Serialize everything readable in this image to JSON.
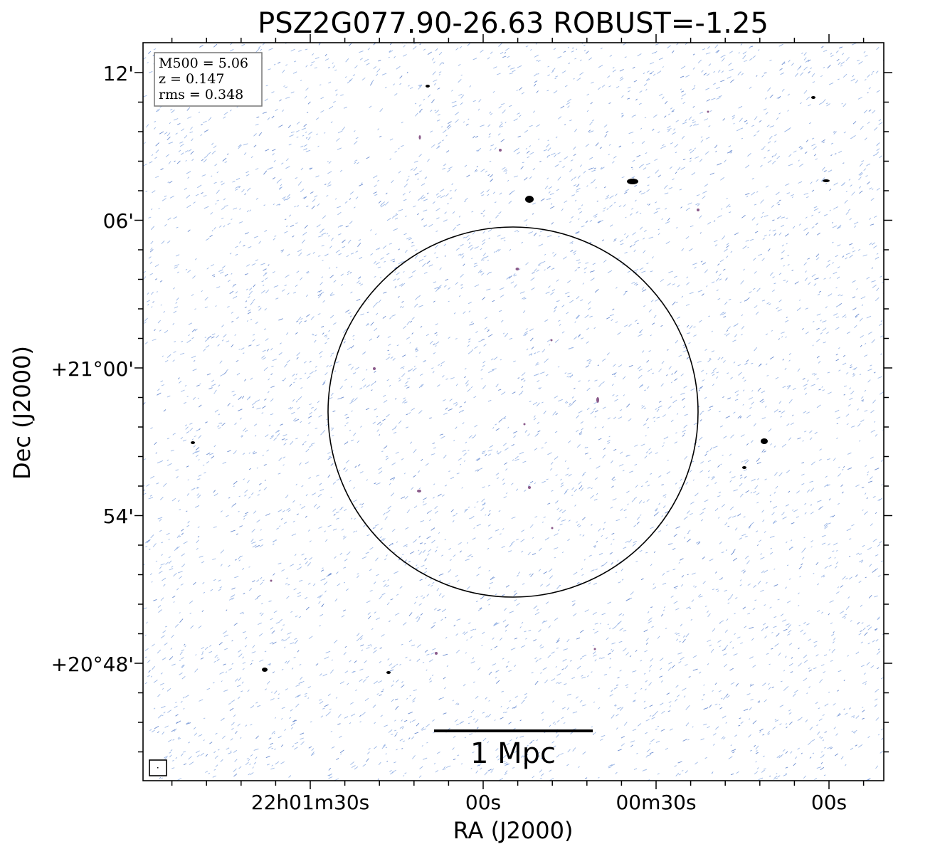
{
  "title": "PSZ2G077.90-26.63 ROBUST=-1.25",
  "xlabel": "RA (J2000)",
  "ylabel": "Dec (J2000)",
  "x_ticks": [
    "22h01m30s",
    "00s",
    "00m30s",
    "00s"
  ],
  "y_ticks": [
    "12'",
    "06'",
    "+21°00'",
    "54'",
    "+20°48'"
  ],
  "info_box": {
    "m500": "M500 = 5.06",
    "z": "z = 0.147",
    "rms": "rms = 0.348"
  },
  "scalebar_label": "1 Mpc",
  "colors": {
    "noise": "#9db8e6",
    "noise_dark": "#6f8fd0",
    "source": "#000000",
    "source_faint": "#8a5a8a",
    "circle": "#000000"
  }
}
